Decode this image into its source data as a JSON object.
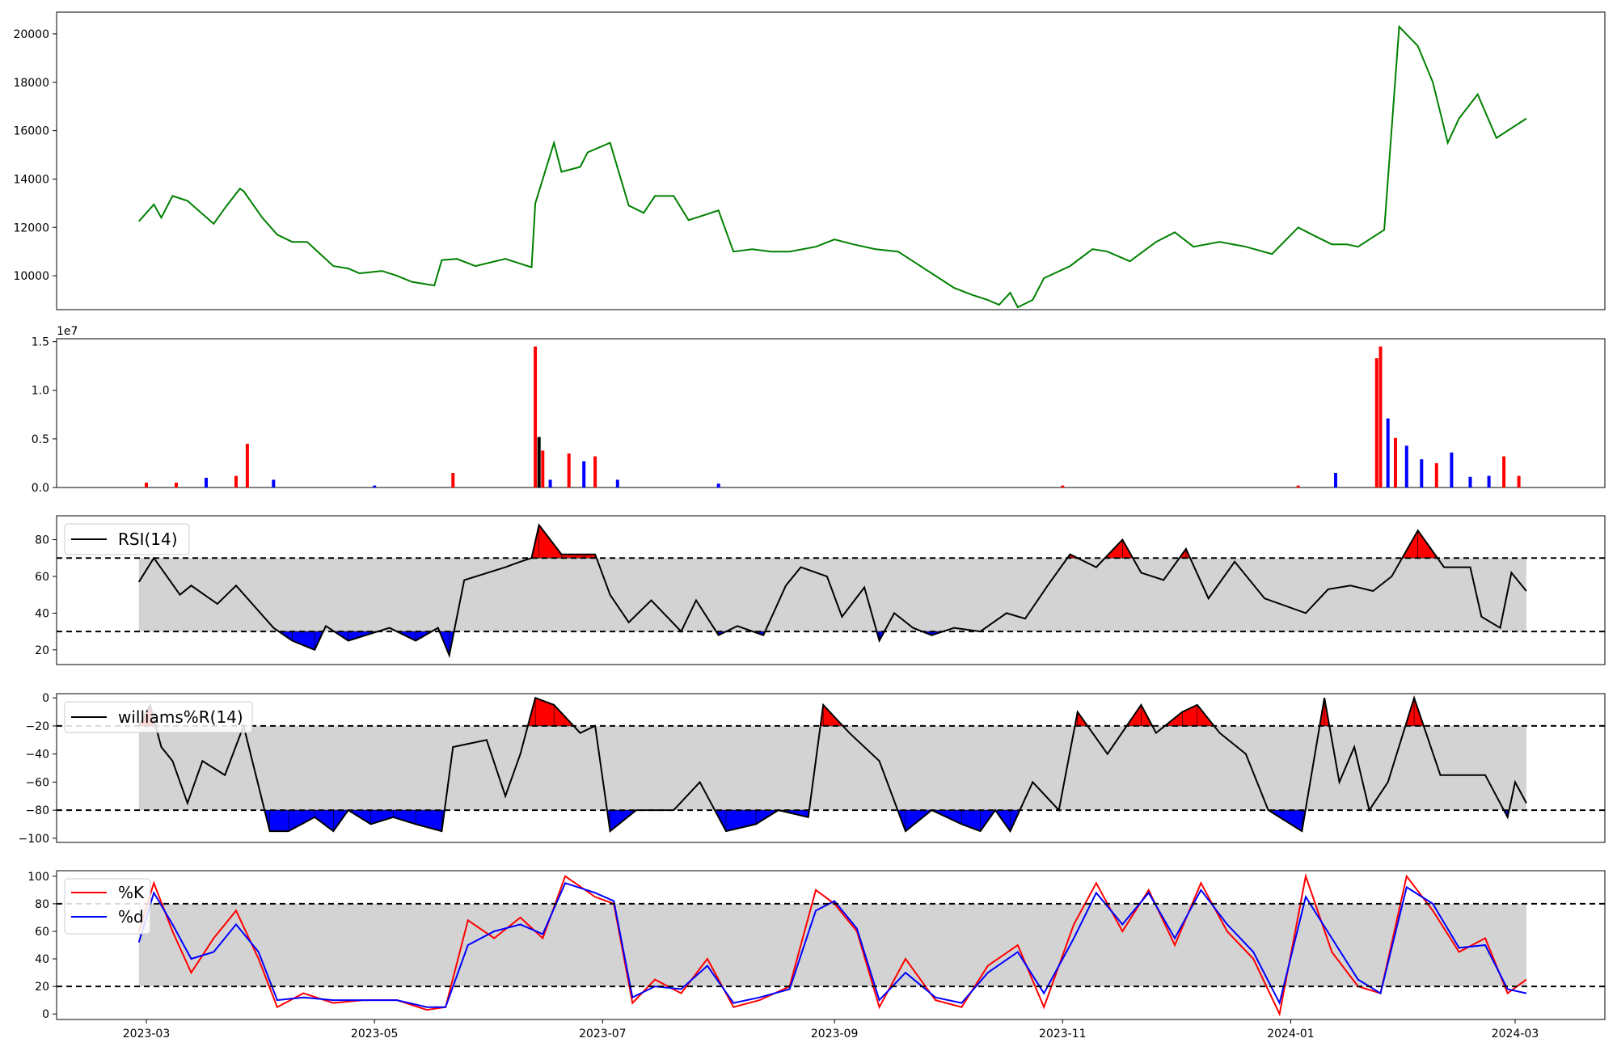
{
  "chart_data": [
    {
      "type": "line",
      "panel": "price",
      "title": "",
      "xlabel": "",
      "ylabel": "",
      "color": "#008000",
      "xlim": [
        "2023-02-05",
        "2024-03-25"
      ],
      "ylim": [
        8600,
        20900
      ],
      "yticks": [
        10000,
        12000,
        14000,
        16000,
        18000,
        20000
      ],
      "ytick_labels": [
        "10000",
        "12000",
        "14000",
        "16000",
        "18000",
        "20000"
      ],
      "x": [
        "2023-02-27",
        "2023-03-03",
        "2023-03-05",
        "2023-03-08",
        "2023-03-12",
        "2023-03-19",
        "2023-03-22",
        "2023-03-26",
        "2023-03-27",
        "2023-04-01",
        "2023-04-05",
        "2023-04-09",
        "2023-04-13",
        "2023-04-20",
        "2023-04-24",
        "2023-04-27",
        "2023-05-03",
        "2023-05-07",
        "2023-05-11",
        "2023-05-17",
        "2023-05-19",
        "2023-05-23",
        "2023-05-28",
        "2023-06-05",
        "2023-06-12",
        "2023-06-13",
        "2023-06-18",
        "2023-06-20",
        "2023-06-25",
        "2023-06-27",
        "2023-07-03",
        "2023-07-08",
        "2023-07-12",
        "2023-07-15",
        "2023-07-20",
        "2023-07-24",
        "2023-08-01",
        "2023-08-05",
        "2023-08-10",
        "2023-08-15",
        "2023-08-20",
        "2023-08-27",
        "2023-09-01",
        "2023-09-06",
        "2023-09-12",
        "2023-09-18",
        "2023-09-27",
        "2023-10-03",
        "2023-10-08",
        "2023-10-12",
        "2023-10-15",
        "2023-10-18",
        "2023-10-20",
        "2023-10-24",
        "2023-10-27",
        "2023-11-03",
        "2023-11-09",
        "2023-11-13",
        "2023-11-19",
        "2023-11-26",
        "2023-12-01",
        "2023-12-06",
        "2023-12-13",
        "2023-12-20",
        "2023-12-27",
        "2024-01-03",
        "2024-01-08",
        "2024-01-12",
        "2024-01-16",
        "2024-01-19",
        "2024-01-24",
        "2024-01-26",
        "2024-01-30",
        "2024-02-04",
        "2024-02-08",
        "2024-02-12",
        "2024-02-15",
        "2024-02-20",
        "2024-02-25",
        "2024-03-01",
        "2024-03-04"
      ],
      "y": [
        12250,
        12950,
        12400,
        13300,
        13100,
        12150,
        12800,
        13600,
        13500,
        12400,
        11700,
        11400,
        11400,
        10400,
        10300,
        10100,
        10200,
        10000,
        9750,
        9600,
        10650,
        10700,
        10400,
        10700,
        10350,
        13000,
        15500,
        14300,
        14500,
        15100,
        15500,
        12900,
        12600,
        13300,
        13300,
        12300,
        12700,
        11000,
        11100,
        11000,
        11000,
        11200,
        11500,
        11300,
        11100,
        11000,
        10100,
        9500,
        9200,
        9000,
        8800,
        9300,
        8700,
        9000,
        9900,
        10400,
        11100,
        11000,
        10600,
        11400,
        11800,
        11200,
        11400,
        11200,
        10900,
        12000,
        11600,
        11300,
        11300,
        11200,
        11700,
        11900,
        20300,
        19500,
        18000,
        15500,
        16500,
        17500,
        15700,
        16200,
        16500
      ]
    },
    {
      "type": "bar",
      "panel": "volume",
      "title": "",
      "xlabel": "",
      "ylabel": "",
      "offset_text": "1e7",
      "ylim": [
        0,
        1.53
      ],
      "yticks": [
        0,
        0.5,
        1.0,
        1.5
      ],
      "ytick_labels": [
        "0.0",
        "0.5",
        "1.0",
        "1.5"
      ],
      "colors": {
        "up": "#ff0000",
        "down": "#0000ff",
        "flat": "#000000"
      },
      "x": [
        "2023-03-01",
        "2023-03-09",
        "2023-03-17",
        "2023-03-25",
        "2023-03-28",
        "2023-04-04",
        "2023-05-01",
        "2023-05-22",
        "2023-06-13",
        "2023-06-14",
        "2023-06-15",
        "2023-06-17",
        "2023-06-22",
        "2023-06-26",
        "2023-06-29",
        "2023-07-05",
        "2023-08-01",
        "2023-11-01",
        "2024-01-03",
        "2024-01-13",
        "2024-01-24",
        "2024-01-25",
        "2024-01-27",
        "2024-01-29",
        "2024-02-01",
        "2024-02-05",
        "2024-02-09",
        "2024-02-13",
        "2024-02-18",
        "2024-02-23",
        "2024-02-27",
        "2024-03-02"
      ],
      "values": [
        0.05,
        0.05,
        0.1,
        0.12,
        0.45,
        0.08,
        0.02,
        0.15,
        1.45,
        0.52,
        0.38,
        0.08,
        0.35,
        0.27,
        0.32,
        0.08,
        0.04,
        0.02,
        0.02,
        0.15,
        1.33,
        1.45,
        0.71,
        0.51,
        0.43,
        0.29,
        0.25,
        0.36,
        0.11,
        0.12,
        0.32,
        0.12
      ],
      "direction": [
        "up",
        "up",
        "down",
        "up",
        "up",
        "down",
        "down",
        "up",
        "up",
        "flat",
        "up",
        "down",
        "up",
        "down",
        "up",
        "down",
        "down",
        "up",
        "up",
        "down",
        "up",
        "up",
        "down",
        "up",
        "down",
        "down",
        "up",
        "down",
        "down",
        "down",
        "up",
        "up"
      ]
    },
    {
      "type": "line",
      "panel": "rsi",
      "title": "",
      "series": [
        {
          "name": "RSI(14)",
          "color": "#000000"
        }
      ],
      "ylim": [
        12,
        93
      ],
      "yticks": [
        20,
        40,
        60,
        80
      ],
      "ytick_labels": [
        "20",
        "40",
        "60",
        "80"
      ],
      "thresholds": [
        30,
        70
      ],
      "band_color": "#d3d3d3",
      "overbought_color": "#ff0000",
      "oversold_color": "#0000ff",
      "legend_loc": "upper left",
      "x": [
        "2023-02-27",
        "2023-03-03",
        "2023-03-10",
        "2023-03-13",
        "2023-03-20",
        "2023-03-25",
        "2023-04-04",
        "2023-04-09",
        "2023-04-15",
        "2023-04-18",
        "2023-04-24",
        "2023-05-05",
        "2023-05-12",
        "2023-05-18",
        "2023-05-21",
        "2023-05-25",
        "2023-06-05",
        "2023-06-09",
        "2023-06-12",
        "2023-06-14",
        "2023-06-20",
        "2023-06-26",
        "2023-06-29",
        "2023-07-03",
        "2023-07-08",
        "2023-07-14",
        "2023-07-22",
        "2023-07-26",
        "2023-08-01",
        "2023-08-06",
        "2023-08-13",
        "2023-08-19",
        "2023-08-23",
        "2023-08-30",
        "2023-09-03",
        "2023-09-09",
        "2023-09-13",
        "2023-09-17",
        "2023-09-22",
        "2023-09-27",
        "2023-10-03",
        "2023-10-10",
        "2023-10-17",
        "2023-10-22",
        "2023-10-28",
        "2023-11-03",
        "2023-11-10",
        "2023-11-17",
        "2023-11-22",
        "2023-11-28",
        "2023-12-04",
        "2023-12-10",
        "2023-12-17",
        "2023-12-25",
        "2024-01-05",
        "2024-01-11",
        "2024-01-17",
        "2024-01-23",
        "2024-01-28",
        "2024-02-04",
        "2024-02-11",
        "2024-02-18",
        "2024-02-21",
        "2024-02-26",
        "2024-02-29",
        "2024-03-04"
      ],
      "y": [
        57,
        70,
        50,
        55,
        45,
        55,
        32,
        25,
        20,
        33,
        25,
        32,
        25,
        32,
        17,
        58,
        65,
        68,
        70,
        88,
        72,
        72,
        72,
        50,
        35,
        47,
        30,
        47,
        28,
        33,
        28,
        55,
        65,
        60,
        38,
        54,
        25,
        40,
        32,
        28,
        32,
        30,
        40,
        37,
        55,
        72,
        65,
        80,
        62,
        58,
        75,
        48,
        68,
        48,
        40,
        53,
        55,
        52,
        60,
        85,
        65,
        65,
        38,
        32,
        62,
        52
      ]
    },
    {
      "type": "line",
      "panel": "williams",
      "title": "",
      "series": [
        {
          "name": "williams%R(14)",
          "color": "#000000"
        }
      ],
      "ylim": [
        -103,
        3
      ],
      "yticks": [
        -100,
        -80,
        -60,
        -40,
        -20,
        0
      ],
      "ytick_labels": [
        "−100",
        "−80",
        "−60",
        "−40",
        "−20",
        "0"
      ],
      "thresholds": [
        -20,
        -80
      ],
      "band_color": "#d3d3d3",
      "overbought_color": "#ff0000",
      "oversold_color": "#0000ff",
      "legend_loc": "upper left",
      "x": [
        "2023-02-27",
        "2023-03-02",
        "2023-03-05",
        "2023-03-08",
        "2023-03-12",
        "2023-03-16",
        "2023-03-22",
        "2023-03-27",
        "2023-04-03",
        "2023-04-08",
        "2023-04-15",
        "2023-04-20",
        "2023-04-24",
        "2023-04-30",
        "2023-05-06",
        "2023-05-12",
        "2023-05-19",
        "2023-05-22",
        "2023-05-31",
        "2023-06-05",
        "2023-06-09",
        "2023-06-13",
        "2023-06-18",
        "2023-06-25",
        "2023-06-29",
        "2023-07-03",
        "2023-07-10",
        "2023-07-20",
        "2023-07-27",
        "2023-08-03",
        "2023-08-11",
        "2023-08-17",
        "2023-08-25",
        "2023-08-29",
        "2023-09-05",
        "2023-09-13",
        "2023-09-20",
        "2023-09-27",
        "2023-10-05",
        "2023-10-10",
        "2023-10-14",
        "2023-10-18",
        "2023-10-24",
        "2023-10-31",
        "2023-11-05",
        "2023-11-13",
        "2023-11-22",
        "2023-11-26",
        "2023-12-03",
        "2023-12-07",
        "2023-12-13",
        "2023-12-20",
        "2023-12-26",
        "2024-01-04",
        "2024-01-10",
        "2024-01-14",
        "2024-01-18",
        "2024-01-22",
        "2024-01-27",
        "2024-02-03",
        "2024-02-10",
        "2024-02-16",
        "2024-02-22",
        "2024-02-28",
        "2024-03-01",
        "2024-03-04"
      ],
      "y": [
        -20,
        -5,
        -35,
        -45,
        -75,
        -45,
        -55,
        -20,
        -95,
        -95,
        -85,
        -95,
        -80,
        -90,
        -85,
        -90,
        -95,
        -35,
        -30,
        -70,
        -40,
        0,
        -5,
        -25,
        -20,
        -95,
        -80,
        -80,
        -60,
        -95,
        -90,
        -80,
        -85,
        -5,
        -25,
        -45,
        -95,
        -80,
        -90,
        -95,
        -80,
        -95,
        -60,
        -80,
        -10,
        -40,
        -5,
        -25,
        -10,
        -5,
        -25,
        -40,
        -80,
        -95,
        0,
        -60,
        -35,
        -80,
        -60,
        0,
        -55,
        -55,
        -55,
        -85,
        -60,
        -75
      ]
    },
    {
      "type": "line",
      "panel": "stochastic",
      "title": "",
      "series": [
        {
          "name": "%K",
          "color": "#ff0000"
        },
        {
          "name": "%d",
          "color": "#0000ff"
        }
      ],
      "ylim": [
        -4,
        104
      ],
      "yticks": [
        0,
        20,
        40,
        60,
        80,
        100
      ],
      "ytick_labels": [
        "0",
        "20",
        "40",
        "60",
        "80",
        "100"
      ],
      "thresholds": [
        20,
        80
      ],
      "band_color": "#d3d3d3",
      "legend_loc": "upper left",
      "x": [
        "2023-02-27",
        "2023-03-03",
        "2023-03-08",
        "2023-03-13",
        "2023-03-19",
        "2023-03-25",
        "2023-03-31",
        "2023-04-05",
        "2023-04-12",
        "2023-04-20",
        "2023-04-28",
        "2023-05-07",
        "2023-05-15",
        "2023-05-20",
        "2023-05-26",
        "2023-06-02",
        "2023-06-09",
        "2023-06-15",
        "2023-06-21",
        "2023-06-29",
        "2023-07-04",
        "2023-07-09",
        "2023-07-15",
        "2023-07-22",
        "2023-07-29",
        "2023-08-05",
        "2023-08-12",
        "2023-08-20",
        "2023-08-27",
        "2023-09-01",
        "2023-09-07",
        "2023-09-13",
        "2023-09-20",
        "2023-09-28",
        "2023-10-05",
        "2023-10-12",
        "2023-10-20",
        "2023-10-27",
        "2023-11-04",
        "2023-11-10",
        "2023-11-17",
        "2023-11-24",
        "2023-12-01",
        "2023-12-08",
        "2023-12-15",
        "2023-12-22",
        "2023-12-29",
        "2024-01-05",
        "2024-01-12",
        "2024-01-19",
        "2024-01-25",
        "2024-02-01",
        "2024-02-08",
        "2024-02-15",
        "2024-02-22",
        "2024-02-28",
        "2024-03-04"
      ],
      "series_values": {
        "k": [
          60,
          95,
          60,
          30,
          55,
          75,
          40,
          5,
          15,
          8,
          10,
          10,
          3,
          5,
          68,
          55,
          70,
          55,
          100,
          85,
          80,
          8,
          25,
          15,
          40,
          5,
          10,
          20,
          90,
          80,
          60,
          5,
          40,
          10,
          5,
          35,
          50,
          5,
          65,
          95,
          60,
          90,
          50,
          95,
          60,
          40,
          0,
          100,
          45,
          20,
          15,
          100,
          75,
          45,
          55,
          15,
          25
        ],
        "d": [
          52,
          88,
          65,
          40,
          45,
          65,
          45,
          10,
          12,
          10,
          10,
          10,
          5,
          5,
          50,
          60,
          65,
          58,
          95,
          88,
          82,
          12,
          20,
          18,
          35,
          8,
          12,
          18,
          75,
          82,
          62,
          10,
          30,
          12,
          8,
          30,
          45,
          15,
          55,
          88,
          65,
          88,
          55,
          90,
          65,
          45,
          8,
          85,
          55,
          25,
          15,
          92,
          80,
          48,
          50,
          18,
          15
        ]
      }
    }
  ],
  "x_axis": {
    "tick_labels": [
      "2023-03",
      "2023-05",
      "2023-07",
      "2023-09",
      "2023-11",
      "2024-01",
      "2024-03"
    ],
    "tick_dates": [
      "2023-03-01",
      "2023-05-01",
      "2023-07-01",
      "2023-09-01",
      "2023-11-01",
      "2024-01-01",
      "2024-03-01"
    ]
  }
}
